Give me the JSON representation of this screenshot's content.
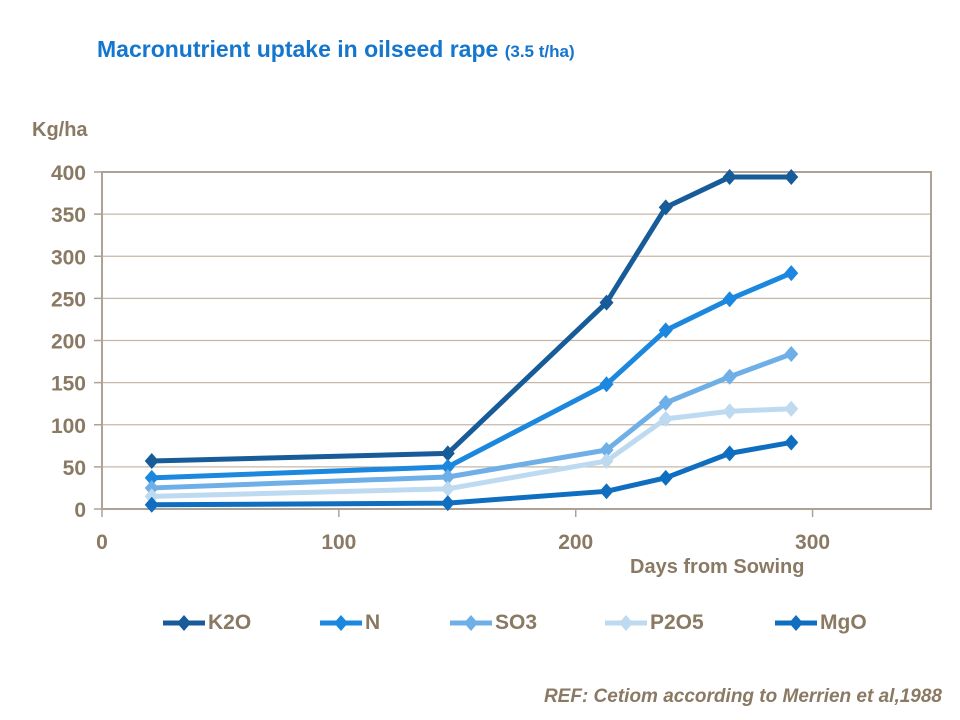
{
  "title": {
    "main": "Macronutrient uptake in oilseed rape ",
    "suffix": "(3.5 t/ha)"
  },
  "colors": {
    "title_blue": "#1476CD",
    "text_brown": "#8A7963",
    "grid": "#C4B8AA",
    "axis_frame": "#AEA195",
    "background": "#FFFFFF"
  },
  "chart_data": {
    "type": "line",
    "x": [
      21,
      146,
      213,
      238,
      265,
      291
    ],
    "series": [
      {
        "name": "K2O",
        "color": "#175C99",
        "values": [
          57,
          66,
          245,
          358,
          394,
          394
        ]
      },
      {
        "name": "N",
        "color": "#1B87DE",
        "values": [
          37,
          50,
          148,
          212,
          249,
          280
        ]
      },
      {
        "name": "SO3",
        "color": "#6FAFE8",
        "values": [
          25,
          38,
          70,
          126,
          157,
          184
        ]
      },
      {
        "name": "P2O5",
        "color": "#BDDAF0",
        "values": [
          15,
          24,
          57,
          107,
          116,
          119
        ]
      },
      {
        "name": "MgO",
        "color": "#0F6EC0",
        "values": [
          5,
          7,
          21,
          37,
          66,
          79
        ]
      }
    ],
    "title": "Macronutrient uptake in oilseed rape (3.5 t/ha)",
    "xlabel": "Days from Sowing",
    "ylabel": "Kg/ha",
    "x_ticks": [
      0,
      100,
      200,
      300
    ],
    "y_ticks": [
      0,
      50,
      100,
      150,
      200,
      250,
      300,
      350,
      400
    ],
    "xlim": [
      0,
      350
    ],
    "ylim": [
      0,
      400
    ],
    "grid": "horizontal",
    "legend_position": "bottom",
    "marker": "diamond"
  },
  "footer": {
    "ref": "REF: Cetiom according to Merrien et al,1988"
  }
}
